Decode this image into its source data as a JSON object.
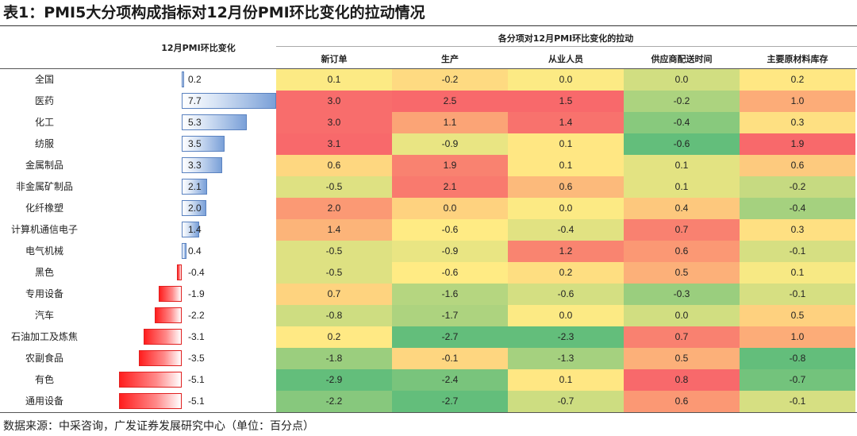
{
  "title": "表1：PMI5大分项构成指标对12月份PMI环比变化的拉动情况",
  "source": "数据来源：中采咨询，广发证券发展研究中心（单位：百分点）",
  "chart_data": {
    "type": "table",
    "left_header": "12月PMI环比变化",
    "group_header": "各分项对12月PMI环比变化的拉动",
    "columns": [
      "新订单",
      "生产",
      "从业人员",
      "供应商配送时间",
      "主要原材料库存"
    ],
    "rows": [
      {
        "label": "全国",
        "pmi_change": 0.2,
        "values": [
          0.1,
          -0.2,
          0.0,
          0.0,
          0.2
        ]
      },
      {
        "label": "医药",
        "pmi_change": 7.7,
        "values": [
          3.0,
          2.5,
          1.5,
          -0.2,
          1.0
        ]
      },
      {
        "label": "化工",
        "pmi_change": 5.3,
        "values": [
          3.0,
          1.1,
          1.4,
          -0.4,
          0.3
        ]
      },
      {
        "label": "纺服",
        "pmi_change": 3.5,
        "values": [
          3.1,
          -0.9,
          0.1,
          -0.6,
          1.9
        ]
      },
      {
        "label": "金属制品",
        "pmi_change": 3.3,
        "values": [
          0.6,
          1.9,
          0.1,
          0.1,
          0.6
        ]
      },
      {
        "label": "非金属矿制品",
        "pmi_change": 2.1,
        "values": [
          -0.5,
          2.1,
          0.6,
          0.1,
          -0.2
        ]
      },
      {
        "label": "化纤橡塑",
        "pmi_change": 2.0,
        "values": [
          2.0,
          0.0,
          0.0,
          0.4,
          -0.4
        ]
      },
      {
        "label": "计算机通信电子",
        "pmi_change": 1.4,
        "values": [
          1.4,
          -0.6,
          -0.4,
          0.7,
          0.3
        ]
      },
      {
        "label": "电气机械",
        "pmi_change": 0.4,
        "values": [
          -0.5,
          -0.9,
          1.2,
          0.6,
          -0.1
        ]
      },
      {
        "label": "黑色",
        "pmi_change": -0.4,
        "values": [
          -0.5,
          -0.6,
          0.2,
          0.5,
          0.1
        ]
      },
      {
        "label": "专用设备",
        "pmi_change": -1.9,
        "values": [
          0.7,
          -1.6,
          -0.6,
          -0.3,
          -0.1
        ]
      },
      {
        "label": "汽车",
        "pmi_change": -2.2,
        "values": [
          -0.8,
          -1.7,
          0.0,
          0.0,
          0.5
        ]
      },
      {
        "label": "石油加工及炼焦",
        "pmi_change": -3.1,
        "values": [
          0.2,
          -2.7,
          -2.3,
          0.7,
          1.0
        ]
      },
      {
        "label": "农副食品",
        "pmi_change": -3.5,
        "values": [
          -1.8,
          -0.1,
          -1.3,
          0.5,
          -0.8
        ]
      },
      {
        "label": "有色",
        "pmi_change": -5.1,
        "values": [
          -2.9,
          -2.4,
          0.1,
          0.8,
          -0.7
        ]
      },
      {
        "label": "通用设备",
        "pmi_change": -5.1,
        "values": [
          -2.2,
          -2.7,
          -0.7,
          0.6,
          -0.1
        ]
      }
    ],
    "bar_range": [
      -5.5,
      7.7
    ],
    "colors": {
      "high": "#f8696b",
      "mid": "#ffeb84",
      "low": "#63be7b",
      "bar_pos": "#7aa0d8",
      "bar_neg": "#ff1e1e"
    }
  }
}
